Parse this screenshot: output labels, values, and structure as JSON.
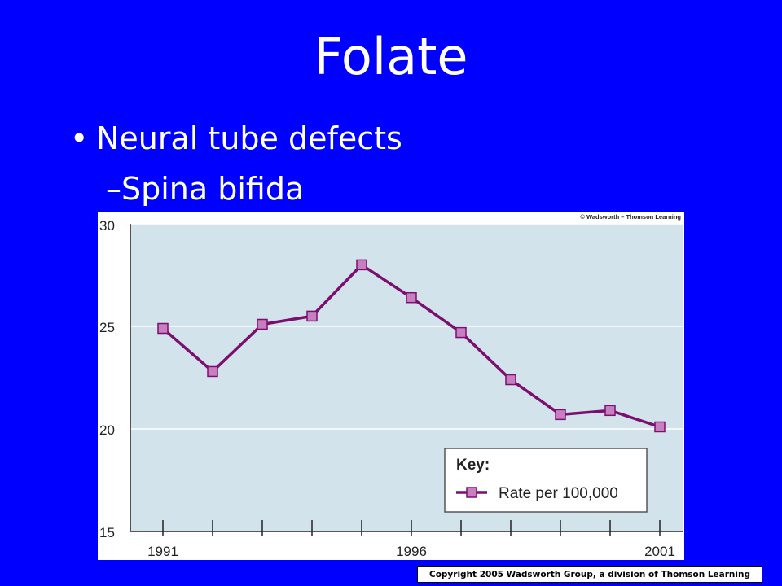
{
  "slide": {
    "title": "Folate",
    "bullet": "Neural tube defects",
    "sub_bullet": "–Spina bifida",
    "copyright": "Copyright 2005 Wadsworth Group, a division of Thomson Learning"
  },
  "chart_data": {
    "type": "line",
    "credit": "© Wadsworth – Thomson Learning",
    "x": [
      1991,
      1992,
      1993,
      1994,
      1995,
      1996,
      1997,
      1998,
      1999,
      2000,
      2001
    ],
    "xlim": [
      1991,
      2001
    ],
    "x_tick_labels": [
      {
        "x": 1991,
        "label": "1991"
      },
      {
        "x": 1996,
        "label": "1996"
      },
      {
        "x": 2001,
        "label": "2001"
      }
    ],
    "ylim": [
      15,
      30
    ],
    "y_ticks": [
      15,
      20,
      25,
      30
    ],
    "grid": true,
    "series": [
      {
        "name": "Rate per 100,000",
        "color": "#7b0f70",
        "marker_color": "#c87fc0",
        "values": [
          24.9,
          22.8,
          25.1,
          25.5,
          28.0,
          26.4,
          24.7,
          22.4,
          20.7,
          20.9,
          20.1
        ]
      }
    ],
    "legend": {
      "title": "Key:",
      "placement": "bottom-right"
    },
    "colors": {
      "plot_bg": "#d3e3ec",
      "grid": "#ffffff"
    }
  }
}
